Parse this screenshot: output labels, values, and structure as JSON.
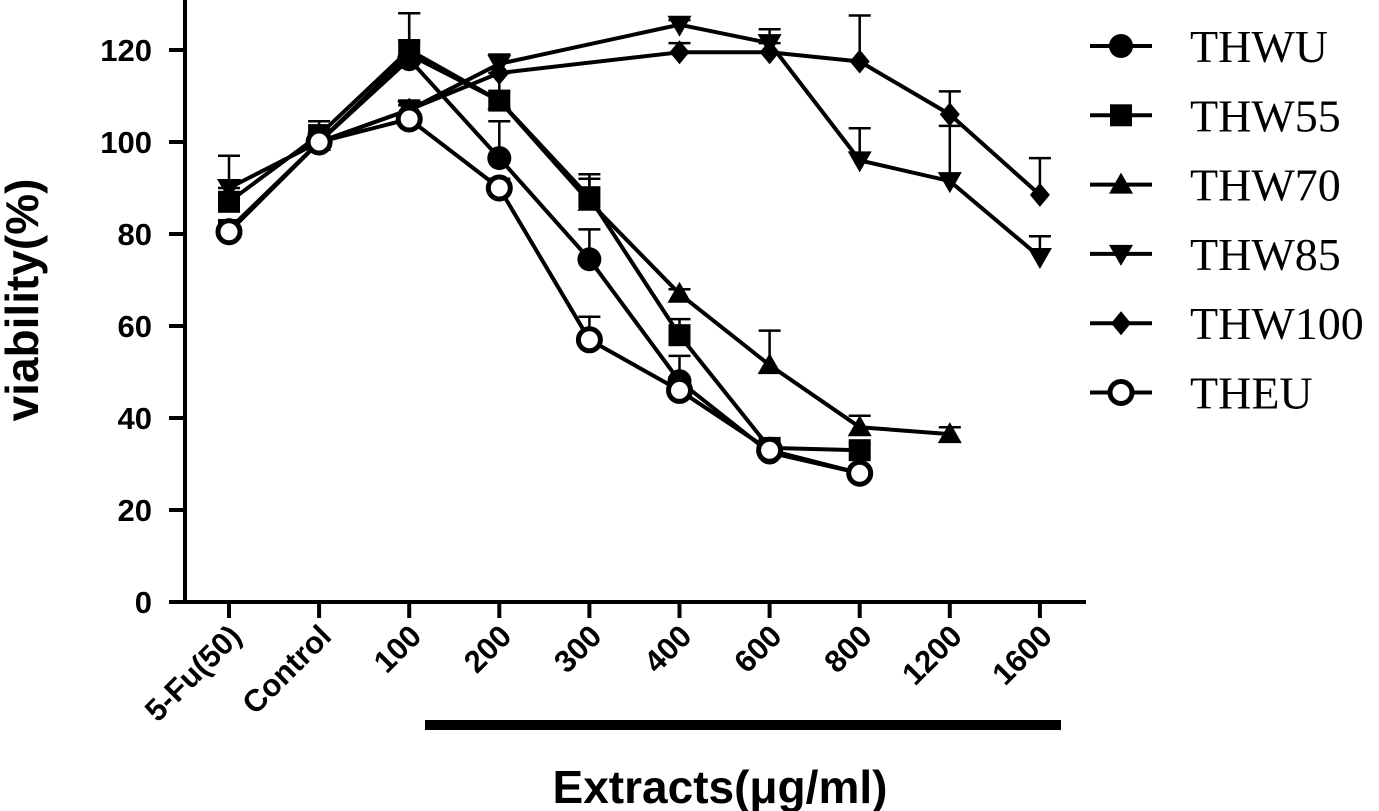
{
  "chart_data": {
    "type": "line",
    "title": "",
    "xlabel": "Extracts(μg/ml)",
    "ylabel": "viability(%)",
    "ylim": [
      0,
      130
    ],
    "yticks": [
      0,
      20,
      40,
      60,
      80,
      100,
      120
    ],
    "categories": [
      "5-Fu(50)",
      "Control",
      "100",
      "200",
      "300",
      "400",
      "600",
      "800",
      "1200",
      "1600"
    ],
    "legend": "right",
    "grid": false,
    "series": [
      {
        "name": "THWU",
        "marker": "circle-filled",
        "values": [
          80.5,
          100,
          118,
          96.5,
          74.5,
          48,
          32.5,
          28,
          null,
          null
        ],
        "errors": [
          2,
          2,
          4,
          8,
          6.5,
          5.5,
          1.5,
          1.5,
          null,
          null
        ]
      },
      {
        "name": "THW55",
        "marker": "square",
        "values": [
          87,
          101.5,
          120,
          109,
          88,
          58,
          33.5,
          33,
          null,
          null
        ],
        "errors": [
          3,
          3,
          8,
          6,
          5,
          3.5,
          1.5,
          1.5,
          null,
          null
        ]
      },
      {
        "name": "THW70",
        "marker": "triangle-up",
        "values": [
          81,
          100,
          119,
          109,
          87,
          67,
          51.5,
          38,
          36.5,
          null
        ],
        "errors": [
          2,
          2,
          9,
          2,
          5,
          1,
          7.5,
          2.5,
          1.5,
          null
        ]
      },
      {
        "name": "THW85",
        "marker": "triangle-down",
        "values": [
          90,
          100,
          107,
          117,
          null,
          125.5,
          121.5,
          96,
          91.5,
          75
        ],
        "errors": [
          7,
          2,
          2,
          2,
          null,
          1,
          3,
          7,
          12,
          4.5
        ]
      },
      {
        "name": "THW100",
        "marker": "diamond",
        "values": [
          80.5,
          100,
          107,
          115,
          null,
          119.5,
          119.5,
          117.5,
          106,
          88.5
        ],
        "errors": [
          2,
          2,
          2,
          4,
          null,
          2,
          2,
          10,
          5,
          8
        ]
      },
      {
        "name": "THEU",
        "marker": "circle-open",
        "values": [
          80.5,
          100,
          105,
          90,
          57,
          46,
          33,
          28,
          null,
          null
        ],
        "errors": [
          2,
          2,
          3,
          2,
          5,
          2,
          1.5,
          1.5,
          null,
          null
        ]
      }
    ]
  }
}
